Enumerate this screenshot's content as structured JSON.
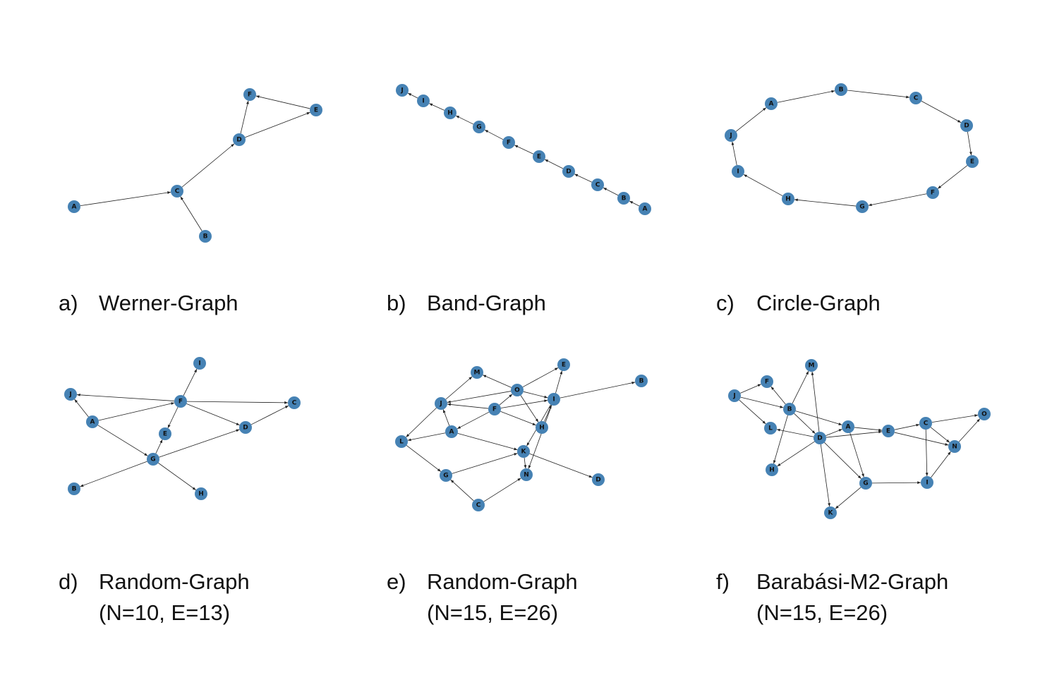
{
  "panels": [
    {
      "label": "a)",
      "title": "Werner-Graph",
      "nodes": [
        "A",
        "B",
        "C",
        "D",
        "E",
        "F"
      ]
    },
    {
      "label": "b)",
      "title": "Band-Graph",
      "nodes": [
        "A",
        "B",
        "C",
        "D",
        "E",
        "F",
        "G",
        "H",
        "I",
        "J"
      ]
    },
    {
      "label": "c)",
      "title": "Circle-Graph",
      "nodes": [
        "A",
        "B",
        "C",
        "D",
        "E",
        "F",
        "G",
        "H",
        "I",
        "J"
      ]
    },
    {
      "label": "d)",
      "title": "Random-Graph",
      "subtitle": "(N=10, E=13)",
      "nodes": [
        "A",
        "B",
        "C",
        "D",
        "E",
        "F",
        "G",
        "H",
        "I",
        "J"
      ]
    },
    {
      "label": "e)",
      "title": "Random-Graph",
      "subtitle": "(N=15, E=26)",
      "nodes": [
        "A",
        "B",
        "C",
        "D",
        "E",
        "F",
        "G",
        "H",
        "I",
        "J",
        "K",
        "L",
        "M",
        "N",
        "O"
      ]
    },
    {
      "label": "f)",
      "title": "Barabási-M2-Graph",
      "subtitle": "(N=15, E=26)",
      "nodes": [
        "A",
        "B",
        "C",
        "D",
        "E",
        "F",
        "G",
        "H",
        "I",
        "J",
        "K",
        "L",
        "M",
        "N",
        "O"
      ]
    }
  ]
}
